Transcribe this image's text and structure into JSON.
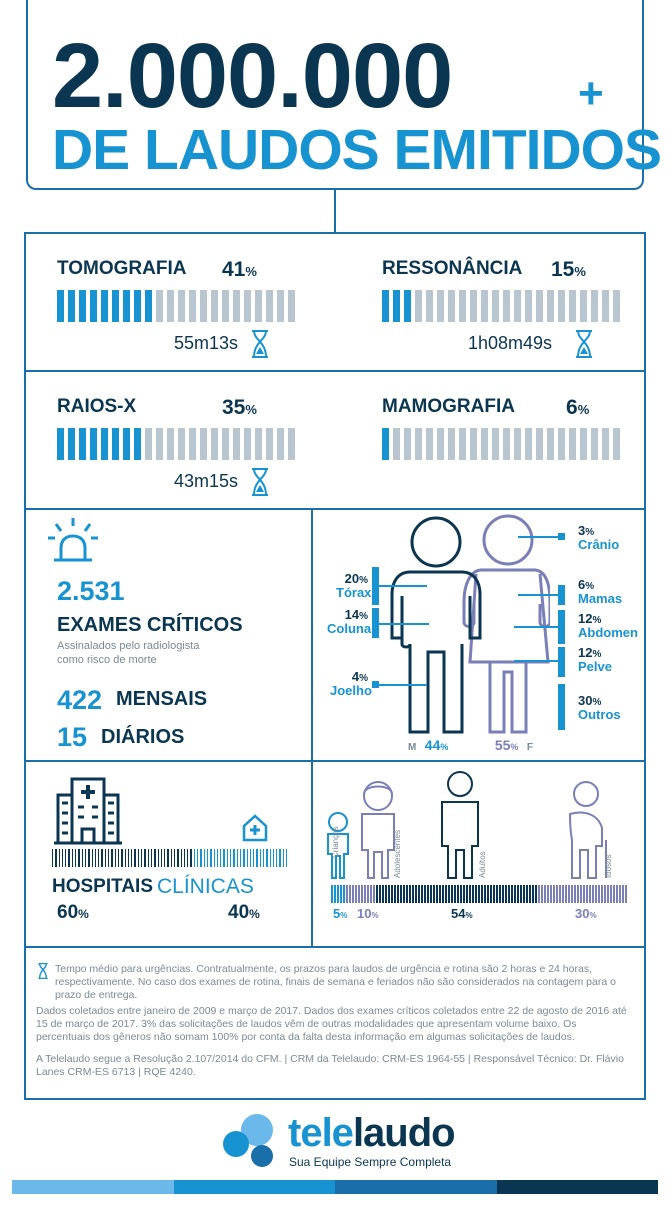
{
  "header": {
    "number": "2.000.000",
    "plus": "+",
    "subtitle": "DE LAUDOS EMITIDOS"
  },
  "modalities": [
    {
      "name": "TOMOGRAFIA",
      "value": "41",
      "unit": "%",
      "fraction": 0.41,
      "time": "55m13s"
    },
    {
      "name": "RESSONÂNCIA",
      "value": "15",
      "unit": "%",
      "fraction": 0.15,
      "time": "1h08m49s"
    },
    {
      "name": "RAIOS-X",
      "value": "35",
      "unit": "%",
      "fraction": 0.35,
      "time": "43m15s"
    },
    {
      "name": "MAMOGRAFIA",
      "value": "6",
      "unit": "%",
      "fraction": 0.06,
      "time": ""
    }
  ],
  "critical": {
    "count": "2.531",
    "title": "EXAMES CRÍTICOS",
    "desc_line1": "Assinalados pelo radiologista",
    "desc_line2": "como risco de morte",
    "monthly_value": "422",
    "monthly_label": "MENSAIS",
    "daily_value": "15",
    "daily_label": "DIÁRIOS"
  },
  "body_parts": {
    "left": [
      {
        "value": "20",
        "unit": "%",
        "name": "Tórax"
      },
      {
        "value": "14",
        "unit": "%",
        "name": "Coluna"
      },
      {
        "value": "4",
        "unit": "%",
        "name": "Joelho"
      }
    ],
    "right": [
      {
        "value": "3",
        "unit": "%",
        "name": "Crânio"
      },
      {
        "value": "6",
        "unit": "%",
        "name": "Mamas"
      },
      {
        "value": "12",
        "unit": "%",
        "name": "Abdomen"
      },
      {
        "value": "12",
        "unit": "%",
        "name": "Pelve"
      },
      {
        "value": "30",
        "unit": "%",
        "name": "Outros"
      }
    ],
    "male_letter": "M",
    "male_value": "44",
    "female_value": "55",
    "female_letter": "F",
    "unit": "%"
  },
  "facilities": {
    "hospitals_label": "HOSPITAIS",
    "hospitals_value": "60",
    "hospitals_fraction": 0.6,
    "clinics_label": "CLÍNICAS",
    "clinics_value": "40",
    "unit": "%"
  },
  "ages": {
    "groups": [
      {
        "name": "Crianças",
        "value": "5",
        "fraction": 0.05
      },
      {
        "name": "Adolescentes",
        "value": "10",
        "fraction": 0.1
      },
      {
        "name": "Adultos",
        "value": "54",
        "fraction": 0.54
      },
      {
        "name": "Idosos",
        "value": "30",
        "fraction": 0.3
      }
    ],
    "unit": "%"
  },
  "footnotes": {
    "p1": "Tempo médio para urgências. Contratualmente, os prazos para laudos de urgência e rotina são 2 horas e 24 horas, respectivamente.  No caso dos exames de rotina, finais de semana e feriados não são considerados na contagem para o prazo de entrega.",
    "p2": "Dados coletados entre janeiro de 2009 e março de 2017. Dados dos exames críticos coletados entre 22 de agosto de 2016 até 15 de março de 2017. 3% das solicitações de laudos vêm de outras modalidades que apresentam volume baixo. Os percentuais dos gêneros não somam 100% por conta da falta desta informação em algumas solicitações de laudos.",
    "p3": "A Telelaudo  segue a Resolução 2.107/2014 do CFM. | CRM da Telelaudo: CRM-ES 1964-55 | Responsável Técnico: Dr. Flávio Lanes CRM-ES 6713 | RQE 4240."
  },
  "brand": {
    "name_part1": "tele",
    "name_part2": "laudo",
    "tagline": "Sua Equipe Sempre Completa"
  },
  "colors": {
    "dark": "#0b3651",
    "accent": "#1793d1",
    "grey": "#b9c6d0",
    "purple": "#7a7fb8",
    "stripe": [
      "#6bb9ea",
      "#1793d1",
      "#1a6fa8",
      "#0b3651"
    ]
  }
}
